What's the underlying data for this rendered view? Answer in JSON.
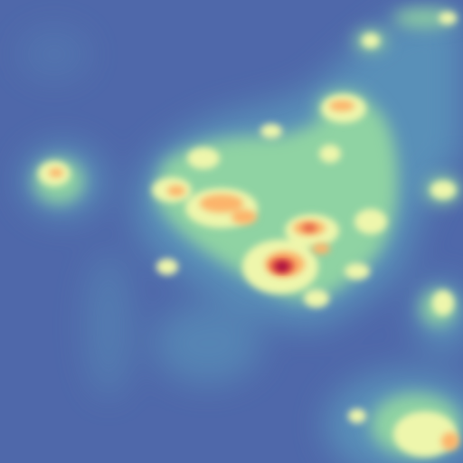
{
  "map": {
    "kind": "density heatmap",
    "colormap": "spectral-reversed",
    "colors": {
      "background": "#4f68aa",
      "low": "#5e80b8",
      "low_mid": "#5bb6b0",
      "mid": "#a9dca0",
      "mid_high": "#f3f5ae",
      "high": "#fdb86a",
      "very_high": "#e0513f",
      "peak": "#9e0142"
    },
    "labels_visible": false
  }
}
